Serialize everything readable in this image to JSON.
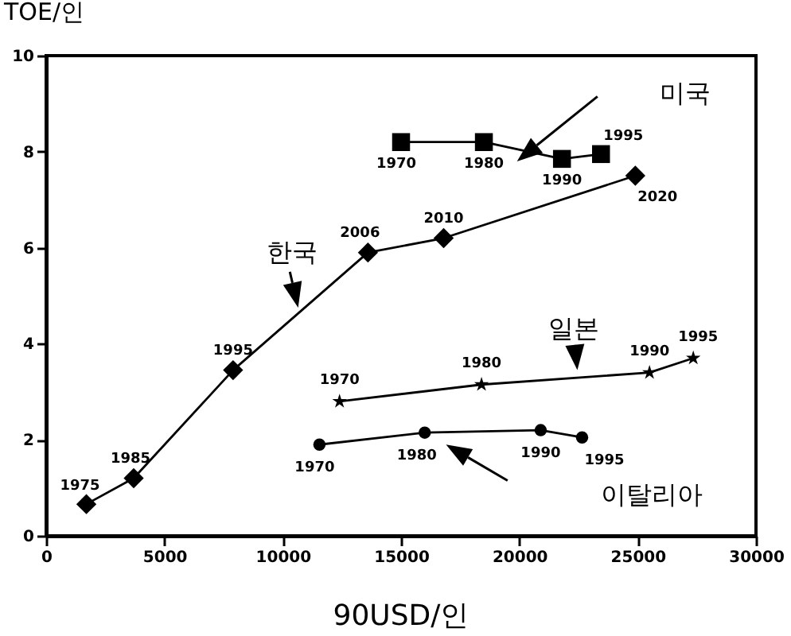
{
  "chart_data": {
    "type": "line",
    "xlabel": "90USD/인",
    "ylabel": "TOE/인",
    "xlim": [
      0,
      30000
    ],
    "ylim": [
      0,
      10
    ],
    "xticks": [
      0,
      5000,
      10000,
      15000,
      20000,
      25000,
      30000
    ],
    "yticks": [
      0,
      2,
      4,
      6,
      8,
      10
    ],
    "grid": false,
    "legend": false,
    "line_style": "solid",
    "series": [
      {
        "name": "한국",
        "color": "#000000",
        "marker": "diamond",
        "x": [
          1700,
          3700,
          7900,
          13600,
          16800,
          24900
        ],
        "values": [
          0.66,
          1.2,
          3.45,
          5.9,
          6.2,
          7.5
        ]
      },
      {
        "name": "미국",
        "color": "#000000",
        "marker": "square",
        "x": [
          15000,
          18500,
          21800,
          23450
        ],
        "values": [
          8.2,
          8.2,
          7.85,
          7.95
        ]
      },
      {
        "name": "일본",
        "color": "#000000",
        "marker": "star",
        "x": [
          12400,
          18400,
          25500,
          27350
        ],
        "values": [
          2.8,
          3.15,
          3.4,
          3.7
        ]
      },
      {
        "name": "이탈리아",
        "color": "#000000",
        "marker": "circle",
        "x": [
          11550,
          16000,
          20900,
          22650
        ],
        "values": [
          1.9,
          2.15,
          2.2,
          2.05
        ]
      }
    ],
    "annotations": [
      {
        "text": "1975",
        "x": 1700,
        "y": 0.66
      },
      {
        "text": "1985",
        "x": 3700,
        "y": 1.2
      },
      {
        "text": "1995",
        "x": 7900,
        "y": 3.45
      },
      {
        "text": "2006",
        "x": 13600,
        "y": 5.9
      },
      {
        "text": "2010",
        "x": 16800,
        "y": 6.2
      },
      {
        "text": "2020",
        "x": 24900,
        "y": 7.5
      },
      {
        "text": "1970",
        "x": 15000,
        "y": 8.2
      },
      {
        "text": "1980",
        "x": 18500,
        "y": 8.2
      },
      {
        "text": "1990",
        "x": 21800,
        "y": 7.85
      },
      {
        "text": "1995",
        "x": 23450,
        "y": 7.95
      },
      {
        "text": "1970",
        "x": 12400,
        "y": 2.8
      },
      {
        "text": "1980",
        "x": 18400,
        "y": 3.15
      },
      {
        "text": "1990",
        "x": 25500,
        "y": 3.4
      },
      {
        "text": "1995",
        "x": 27350,
        "y": 3.7
      },
      {
        "text": "1970",
        "x": 11550,
        "y": 1.9
      },
      {
        "text": "1980",
        "x": 16000,
        "y": 2.15
      },
      {
        "text": "1990",
        "x": 20900,
        "y": 2.2
      },
      {
        "text": "1995",
        "x": 22650,
        "y": 2.05
      }
    ]
  }
}
